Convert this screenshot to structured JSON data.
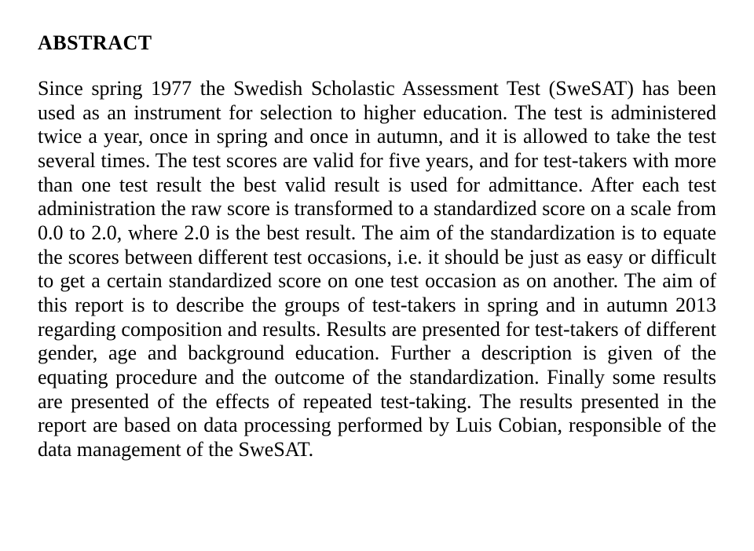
{
  "heading": "ABSTRACT",
  "body": "Since spring 1977 the Swedish Scholastic Assessment Test (SweSAT) has been used as an instrument for selection to higher education. The test is administered twice a year, once in spring and once in autumn, and it is allowed to take the test several times. The test scores are valid for five years, and for test-takers with more than one test result the best valid result is used for admittance. After each test administration the raw score is transformed to a standardized score on a scale from 0.0 to 2.0, where 2.0 is the best result. The aim of the standardization is to equate the scores between different test occasions, i.e. it should be just as easy or difficult to get a certain standardized score on one test occasion as on another. The aim of this report is to describe the groups of test-takers in spring and in autumn 2013 regarding composition and results. Results are presented for test-takers of different gender, age and background education. Further a description is given of the equating procedure and the outcome of the standardization. Finally some results are presented of the effects of repeated test-taking. The results presented in the report are based on data processing performed by Luis Cobian, responsible of the data management of the SweSAT."
}
